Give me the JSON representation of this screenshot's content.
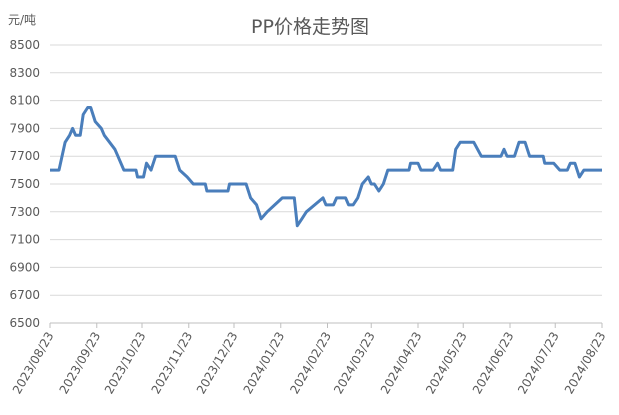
{
  "chart_data": {
    "type": "line",
    "title": "PP价格走势图",
    "y_label": "元/吨",
    "x": [
      "2023/08/23",
      "2023/08/29",
      "2023/09/02",
      "2023/09/05",
      "2023/09/07",
      "2023/09/09",
      "2023/09/12",
      "2023/09/14",
      "2023/09/17",
      "2023/09/19",
      "2023/09/22",
      "2023/09/26",
      "2023/09/28",
      "2023/10/05",
      "2023/10/07",
      "2023/10/11",
      "2023/10/19",
      "2023/10/20",
      "2023/10/24",
      "2023/10/26",
      "2023/10/29",
      "2023/11/01",
      "2023/11/14",
      "2023/11/17",
      "2023/11/22",
      "2023/11/26",
      "2023/12/04",
      "2023/12/05",
      "2023/12/19",
      "2023/12/20",
      "2023/12/31",
      "2024/01/03",
      "2024/01/07",
      "2024/01/10",
      "2024/01/14",
      "2024/01/19",
      "2024/01/24",
      "2024/02/01",
      "2024/02/03",
      "2024/02/06",
      "2024/02/09",
      "2024/02/20",
      "2024/02/22",
      "2024/02/27",
      "2024/02/29",
      "2024/03/06",
      "2024/03/08",
      "2024/03/11",
      "2024/03/14",
      "2024/03/17",
      "2024/03/21",
      "2024/03/23",
      "2024/03/25",
      "2024/03/28",
      "2024/03/31",
      "2024/04/03",
      "2024/04/17",
      "2024/04/18",
      "2024/04/23",
      "2024/04/25",
      "2024/05/03",
      "2024/05/06",
      "2024/05/08",
      "2024/05/16",
      "2024/05/18",
      "2024/05/21",
      "2024/05/30",
      "2024/06/04",
      "2024/06/17",
      "2024/06/19",
      "2024/06/21",
      "2024/06/26",
      "2024/06/29",
      "2024/07/03",
      "2024/07/06",
      "2024/07/15",
      "2024/07/16",
      "2024/07/22",
      "2024/07/26",
      "2024/07/31",
      "2024/08/02",
      "2024/08/05",
      "2024/08/08",
      "2024/08/11",
      "2024/08/23"
    ],
    "series": [
      {
        "name": "PP",
        "color": "#4a7ebb",
        "values": [
          7600,
          7600,
          7800,
          7850,
          7900,
          7850,
          7850,
          8000,
          8050,
          8050,
          7950,
          7900,
          7850,
          7750,
          7700,
          7600,
          7600,
          7550,
          7550,
          7650,
          7600,
          7700,
          7700,
          7600,
          7550,
          7500,
          7500,
          7450,
          7450,
          7500,
          7500,
          7400,
          7350,
          7250,
          7300,
          7350,
          7400,
          7400,
          7200,
          7250,
          7300,
          7400,
          7350,
          7350,
          7400,
          7400,
          7350,
          7350,
          7400,
          7500,
          7550,
          7500,
          7500,
          7450,
          7500,
          7600,
          7600,
          7650,
          7650,
          7600,
          7600,
          7650,
          7600,
          7600,
          7750,
          7800,
          7800,
          7700,
          7700,
          7750,
          7700,
          7700,
          7800,
          7800,
          7700,
          7700,
          7650,
          7650,
          7600,
          7600,
          7650,
          7650,
          7550,
          7600,
          7600
        ]
      }
    ],
    "xlim": [
      "2023/08/23",
      "2024/08/23"
    ],
    "xticks": [
      "2023/08/23",
      "2023/09/23",
      "2023/10/23",
      "2023/11/23",
      "2023/12/23",
      "2024/01/23",
      "2024/02/23",
      "2024/03/23",
      "2024/04/23",
      "2024/05/23",
      "2024/06/23",
      "2024/07/23",
      "2024/08/23"
    ],
    "ylim": [
      6500,
      8500
    ],
    "yticks": [
      6500,
      6700,
      6900,
      7100,
      7300,
      7500,
      7700,
      7900,
      8100,
      8300,
      8500
    ],
    "grid": true
  }
}
